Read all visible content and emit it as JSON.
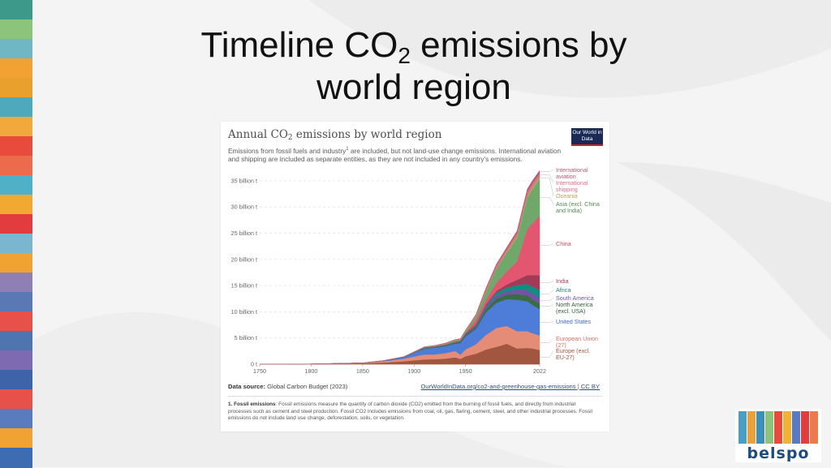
{
  "slide": {
    "title_main": "Timeline CO",
    "title_sub": "2",
    "title_rest": " emissions by",
    "title_line2": "world region"
  },
  "decor": {
    "stripe_colors": [
      "#3d9a8a",
      "#8cc47c",
      "#6fb7c4",
      "#f2a232",
      "#e9a02c",
      "#4fa9bc",
      "#f0a93a",
      "#e84b3c",
      "#ec6b4d",
      "#4fb0c8",
      "#f2a932",
      "#e23c3f",
      "#7bb6d1",
      "#f0a232",
      "#8f7fb5",
      "#5a78b4",
      "#e85149",
      "#4e75b0",
      "#7e6ab0",
      "#3f63a8",
      "#e85149",
      "#5b7bbf",
      "#f0a232",
      "#3d6cb2"
    ]
  },
  "logo": {
    "text": "belspo",
    "bar_colors": [
      "#4a9fc0",
      "#e9a13a",
      "#3d8fb8",
      "#8cc47c",
      "#e84b3c",
      "#f2b233",
      "#5a7ac0",
      "#e23c3f",
      "#ec7a4d"
    ]
  },
  "chart": {
    "title_main": "Annual CO",
    "title_sub": "2",
    "title_rest": " emissions by world region",
    "subtitle_a": "Emissions from fossil fuels and industry",
    "subtitle_sup": "1",
    "subtitle_b": " are included, but not land-use change emissions. International aviation and shipping are included as separate entities, as they are not included in any country's emissions.",
    "owid_label": "Our World in Data",
    "source_label": "Data source:",
    "source_text": " Global Carbon Budget (2023)",
    "link_text": "OurWorldInData.org/co2-and-greenhouse-gas-emissions",
    "link_sep": " | ",
    "license_text": "CC BY",
    "footnote_label": "1. Fossil emissions",
    "footnote_text": ": Fossil emissions measure the quantity of carbon dioxide (CO2) emitted from the burning of fossil fuels, and directly from industrial processes such as cement and steel production. Fossil CO2 includes emissions from coal, oil, gas, flaring, cement, steel, and other industrial processes. Fossil emissions do not include land use change, deforestation, soils, or vegetation."
  },
  "chart_data": {
    "type": "area",
    "stacked": true,
    "x": [
      1750,
      1800,
      1850,
      1870,
      1890,
      1910,
      1920,
      1930,
      1940,
      1945,
      1950,
      1960,
      1970,
      1980,
      1990,
      2000,
      2010,
      2015,
      2022
    ],
    "xlim": [
      1750,
      2022
    ],
    "ylim": [
      0,
      37
    ],
    "x_ticks": [
      1750,
      1800,
      1850,
      1900,
      1950,
      2022
    ],
    "y_ticks": [
      0,
      5,
      10,
      15,
      20,
      25,
      30,
      35
    ],
    "y_tick_labels": [
      "0 t",
      "5 billion t",
      "10 billion t",
      "15 billion t",
      "20 billion t",
      "25 billion t",
      "30 billion t",
      "35 billion t"
    ],
    "grid": "horizontal dashed",
    "legend": "right, labels at series end",
    "series": [
      {
        "name": "Europe (excl. EU-27)",
        "color": "#a2553f",
        "values": [
          0.01,
          0.03,
          0.15,
          0.3,
          0.55,
          0.9,
          0.95,
          1.05,
          1.3,
          1.0,
          1.5,
          2.0,
          2.8,
          3.3,
          3.9,
          3.0,
          3.1,
          3.0,
          2.7
        ]
      },
      {
        "name": "European Union (27)",
        "color": "#e58c76",
        "values": [
          0,
          0.01,
          0.07,
          0.25,
          0.5,
          0.95,
          0.9,
          1.05,
          1.2,
          0.8,
          1.3,
          1.8,
          2.8,
          3.6,
          3.4,
          3.3,
          3.2,
          2.9,
          2.8
        ]
      },
      {
        "name": "United States",
        "color": "#4d7dd8",
        "values": [
          0,
          0,
          0.02,
          0.1,
          0.3,
          1.1,
          1.3,
          1.3,
          1.4,
          2.2,
          2.5,
          2.9,
          4.3,
          4.8,
          5.1,
          6.0,
          5.7,
          5.4,
          5.0
        ]
      },
      {
        "name": "North America (excl. USA)",
        "color": "#3b6d45",
        "values": [
          0,
          0,
          0,
          0.01,
          0.02,
          0.1,
          0.1,
          0.12,
          0.15,
          0.2,
          0.25,
          0.35,
          0.6,
          0.8,
          0.9,
          1.1,
          1.1,
          1.1,
          1.1
        ]
      },
      {
        "name": "South America",
        "color": "#7253a8",
        "values": [
          0,
          0,
          0,
          0,
          0.01,
          0.03,
          0.04,
          0.06,
          0.08,
          0.1,
          0.15,
          0.25,
          0.4,
          0.6,
          0.65,
          0.85,
          1.05,
          1.1,
          1.1
        ]
      },
      {
        "name": "Africa",
        "color": "#0f8f82",
        "values": [
          0,
          0,
          0,
          0,
          0.01,
          0.03,
          0.03,
          0.04,
          0.06,
          0.08,
          0.1,
          0.15,
          0.3,
          0.55,
          0.65,
          0.85,
          1.15,
          1.3,
          1.45
        ]
      },
      {
        "name": "India",
        "color": "#a33b58",
        "values": [
          0,
          0,
          0,
          0.01,
          0.02,
          0.05,
          0.06,
          0.07,
          0.08,
          0.1,
          0.1,
          0.15,
          0.25,
          0.35,
          0.6,
          1.0,
          1.7,
          2.2,
          2.8
        ]
      },
      {
        "name": "China",
        "color": "#e2566f",
        "values": [
          0,
          0,
          0,
          0,
          0,
          0.01,
          0.02,
          0.04,
          0.05,
          0.05,
          0.1,
          0.8,
          0.9,
          1.5,
          2.5,
          3.5,
          8.8,
          9.9,
          11.4
        ]
      },
      {
        "name": "Asia (excl. China and India)",
        "color": "#6fa86a",
        "values": [
          0,
          0,
          0,
          0,
          0.01,
          0.08,
          0.1,
          0.15,
          0.25,
          0.2,
          0.3,
          0.7,
          1.6,
          2.7,
          3.5,
          4.5,
          6.0,
          6.5,
          7.0
        ]
      },
      {
        "name": "Oceania",
        "color": "#b9a455",
        "values": [
          0,
          0,
          0,
          0,
          0.01,
          0.01,
          0.02,
          0.03,
          0.03,
          0.03,
          0.04,
          0.06,
          0.1,
          0.15,
          0.3,
          0.38,
          0.44,
          0.45,
          0.43
        ]
      },
      {
        "name": "International shipping",
        "color": "#d8708a",
        "values": [
          0,
          0,
          0,
          0,
          0,
          0.05,
          0.05,
          0.08,
          0.1,
          0.1,
          0.15,
          0.25,
          0.4,
          0.5,
          0.5,
          0.55,
          0.75,
          0.7,
          0.7
        ]
      },
      {
        "name": "International aviation",
        "color": "#b15a75",
        "values": [
          0,
          0,
          0,
          0,
          0,
          0,
          0,
          0,
          0,
          0,
          0.02,
          0.06,
          0.2,
          0.25,
          0.3,
          0.4,
          0.45,
          0.5,
          0.5
        ]
      }
    ],
    "legend_labels": [
      {
        "lines": [
          "International",
          "aviation"
        ],
        "color": "#b15a75"
      },
      {
        "lines": [
          "International",
          "shipping"
        ],
        "color": "#d8708a"
      },
      {
        "lines": [
          "Oceania"
        ],
        "color": "#b9a455"
      },
      {
        "lines": [
          "Asia (excl. China",
          "and India)"
        ],
        "color": "#4e8a4e"
      },
      {
        "lines": [
          "China"
        ],
        "color": "#d8485f"
      },
      {
        "lines": [
          "India"
        ],
        "color": "#a33b58"
      },
      {
        "lines": [
          "Africa"
        ],
        "color": "#0f8f82"
      },
      {
        "lines": [
          "South America"
        ],
        "color": "#7253a8"
      },
      {
        "lines": [
          "North America",
          "(excl. USA)"
        ],
        "color": "#2f5c3a"
      },
      {
        "lines": [
          "United States"
        ],
        "color": "#3a6cc8"
      },
      {
        "lines": [
          "European Union",
          "(27)"
        ],
        "color": "#d8705c"
      },
      {
        "lines": [
          "Europe (excl.",
          "EU-27)"
        ],
        "color": "#a2553f"
      }
    ]
  }
}
